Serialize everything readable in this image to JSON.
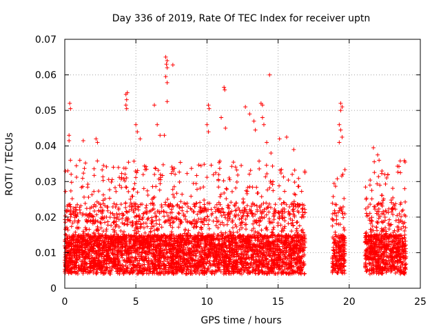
{
  "chart_data": {
    "type": "scatter",
    "title": "Day 336 of 2019, Rate Of TEC Index for receiver uptn",
    "xlabel": "GPS time / hours",
    "ylabel": "ROTI / TECUs",
    "xlim": [
      0,
      25
    ],
    "ylim": [
      0,
      0.07
    ],
    "xticks": [
      0,
      5,
      10,
      15,
      20,
      25
    ],
    "xtick_labels": [
      "0",
      "5",
      "10",
      "15",
      "20",
      "25"
    ],
    "yticks": [
      0,
      0.01,
      0.02,
      0.03,
      0.04,
      0.05,
      0.06,
      0.07
    ],
    "ytick_labels": [
      "0",
      "0.01",
      "0.02",
      "0.03",
      "0.04",
      "0.05",
      "0.06",
      "0.07"
    ],
    "grid": true,
    "marker": "+",
    "color": "#ff0000",
    "data_segments_hours": [
      [
        0,
        16.9
      ],
      [
        18.8,
        19.7
      ],
      [
        21.1,
        24.0
      ]
    ],
    "series": [
      {
        "name": "ROTI",
        "points": [
          [
            0.35,
            0.052
          ],
          [
            0.4,
            0.0505
          ],
          [
            0.3,
            0.043
          ],
          [
            0.3,
            0.0415
          ],
          [
            0.4,
            0.036
          ],
          [
            1.3,
            0.0415
          ],
          [
            2.2,
            0.042
          ],
          [
            2.3,
            0.041
          ],
          [
            4.3,
            0.0545
          ],
          [
            4.4,
            0.055
          ],
          [
            4.35,
            0.053
          ],
          [
            4.3,
            0.0515
          ],
          [
            4.35,
            0.0505
          ],
          [
            5.0,
            0.046
          ],
          [
            5.1,
            0.044
          ],
          [
            5.3,
            0.042
          ],
          [
            6.3,
            0.0515
          ],
          [
            6.5,
            0.046
          ],
          [
            6.7,
            0.043
          ],
          [
            7.1,
            0.065
          ],
          [
            7.2,
            0.064
          ],
          [
            7.15,
            0.063
          ],
          [
            7.2,
            0.062
          ],
          [
            7.1,
            0.0595
          ],
          [
            7.2,
            0.0578
          ],
          [
            7.6,
            0.0628
          ],
          [
            7.2,
            0.0525
          ],
          [
            7.0,
            0.043
          ],
          [
            10.1,
            0.0515
          ],
          [
            10.15,
            0.0505
          ],
          [
            10.0,
            0.046
          ],
          [
            10.1,
            0.044
          ],
          [
            11.2,
            0.0565
          ],
          [
            11.25,
            0.0558
          ],
          [
            11.0,
            0.048
          ],
          [
            11.3,
            0.045
          ],
          [
            12.7,
            0.051
          ],
          [
            13.0,
            0.049
          ],
          [
            13.3,
            0.047
          ],
          [
            13.4,
            0.0445
          ],
          [
            13.8,
            0.052
          ],
          [
            13.9,
            0.0515
          ],
          [
            13.9,
            0.048
          ],
          [
            14.0,
            0.046
          ],
          [
            14.4,
            0.06
          ],
          [
            14.2,
            0.041
          ],
          [
            14.5,
            0.038
          ],
          [
            15.1,
            0.042
          ],
          [
            15.6,
            0.0425
          ],
          [
            16.1,
            0.039
          ],
          [
            19.4,
            0.052
          ],
          [
            19.5,
            0.051
          ],
          [
            19.4,
            0.05
          ],
          [
            19.3,
            0.046
          ],
          [
            19.4,
            0.0445
          ],
          [
            19.5,
            0.0425
          ],
          [
            19.3,
            0.041
          ],
          [
            21.7,
            0.0395
          ],
          [
            22.0,
            0.0375
          ],
          [
            22.1,
            0.036
          ],
          [
            22.5,
            0.032
          ],
          [
            23.6,
            0.0325
          ],
          [
            23.9,
            0.028
          ]
        ]
      }
    ]
  }
}
